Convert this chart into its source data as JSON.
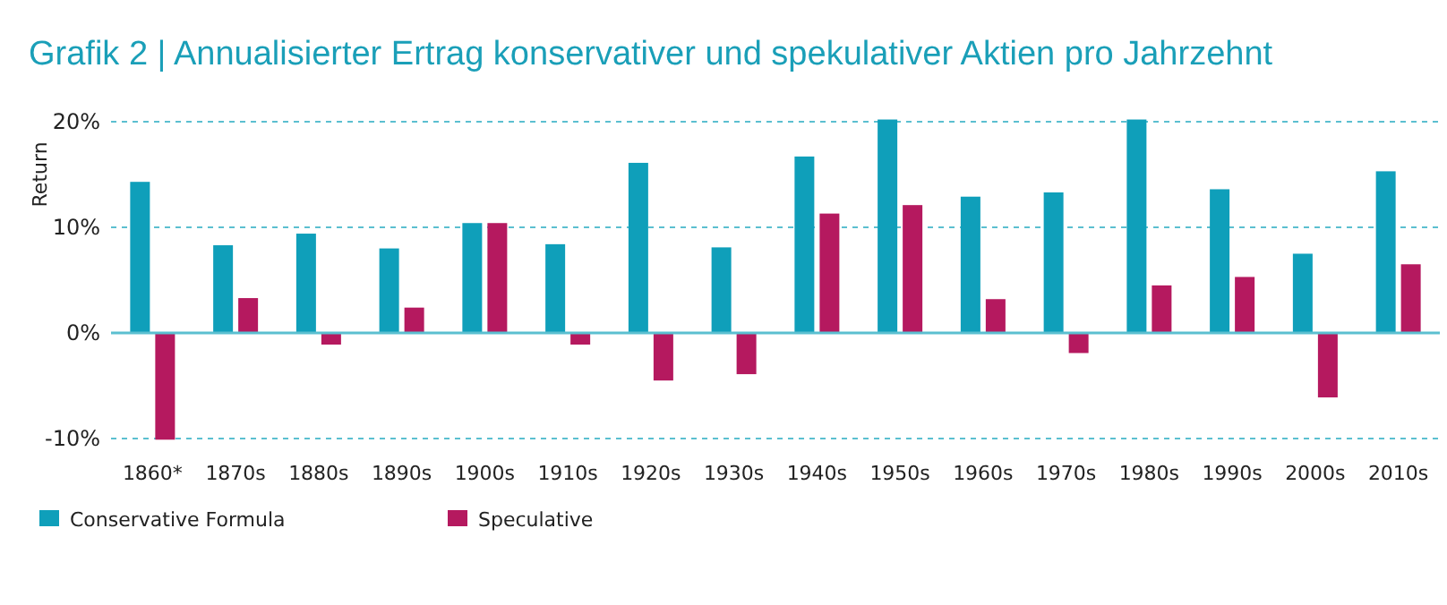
{
  "chart_data": {
    "type": "bar",
    "title": "Grafik 2 | Annualisierter Ertrag konservativer und spekulativer Aktien pro Jahrzehnt",
    "ylabel": "Return",
    "categories": [
      "1860*",
      "1870s",
      "1880s",
      "1890s",
      "1900s",
      "1910s",
      "1920s",
      "1930s",
      "1940s",
      "1950s",
      "1960s",
      "1970s",
      "1980s",
      "1990s",
      "2000s",
      "2010s"
    ],
    "series": [
      {
        "name": "Conservative Formula",
        "color": "#0f9fba",
        "values": [
          14.3,
          8.3,
          9.4,
          8.0,
          10.4,
          8.4,
          16.1,
          8.1,
          16.7,
          20.2,
          12.9,
          13.3,
          20.2,
          13.6,
          7.5,
          15.3
        ]
      },
      {
        "name": "Speculative",
        "color": "#b5195f",
        "values": [
          -10.1,
          3.3,
          -1.1,
          2.4,
          10.4,
          -1.1,
          -4.5,
          -3.9,
          11.3,
          12.1,
          3.2,
          -1.9,
          4.5,
          5.3,
          -6.1,
          6.5
        ]
      }
    ],
    "ylim": [
      -10.5,
      20.5
    ],
    "yticks": [
      {
        "value": -10,
        "label": "-10%"
      },
      {
        "value": 0,
        "label": "0%"
      },
      {
        "value": 10,
        "label": "10%"
      },
      {
        "value": 20,
        "label": "20%"
      }
    ],
    "ref_lines": [
      {
        "axis": "y",
        "value": 0,
        "color": "#5bbfd0"
      }
    ],
    "grid": "y",
    "legend": "bottom"
  }
}
